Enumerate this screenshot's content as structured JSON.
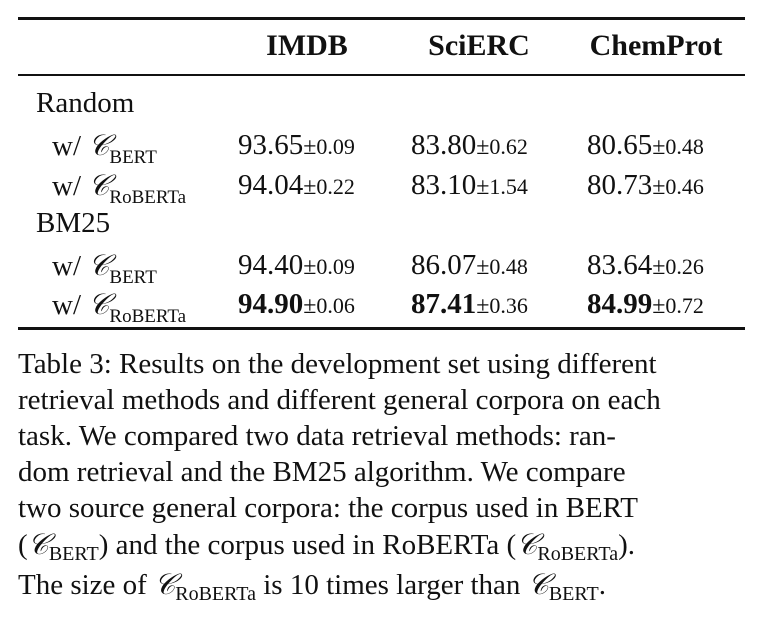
{
  "table": {
    "columns": [
      "IMDB",
      "SciERC",
      "ChemProt"
    ],
    "groups": [
      {
        "name": "Random",
        "rows": [
          {
            "prefix": "w/ ",
            "corpus_symbol": "𝒞",
            "corpus_sub": "BERT",
            "cells": [
              {
                "mean": "93.65",
                "pm": "±",
                "sd": "0.09",
                "bold": false
              },
              {
                "mean": "83.80",
                "pm": "±",
                "sd": "0.62",
                "bold": false
              },
              {
                "mean": "80.65",
                "pm": "±",
                "sd": "0.48",
                "bold": false
              }
            ]
          },
          {
            "prefix": "w/ ",
            "corpus_symbol": "𝒞",
            "corpus_sub": "RoBERTa",
            "cells": [
              {
                "mean": "94.04",
                "pm": "±",
                "sd": "0.22",
                "bold": false
              },
              {
                "mean": "83.10",
                "pm": "±",
                "sd": "1.54",
                "bold": false
              },
              {
                "mean": "80.73",
                "pm": "±",
                "sd": "0.46",
                "bold": false
              }
            ]
          }
        ]
      },
      {
        "name": "BM25",
        "rows": [
          {
            "prefix": "w/ ",
            "corpus_symbol": "𝒞",
            "corpus_sub": "BERT",
            "cells": [
              {
                "mean": "94.40",
                "pm": "±",
                "sd": "0.09",
                "bold": false
              },
              {
                "mean": "86.07",
                "pm": "±",
                "sd": "0.48",
                "bold": false
              },
              {
                "mean": "83.64",
                "pm": "±",
                "sd": "0.26",
                "bold": false
              }
            ]
          },
          {
            "prefix": "w/ ",
            "corpus_symbol": "𝒞",
            "corpus_sub": "RoBERTa",
            "cells": [
              {
                "mean": "94.90",
                "pm": "±",
                "sd": "0.06",
                "bold": true
              },
              {
                "mean": "87.41",
                "pm": "±",
                "sd": "0.36",
                "bold": true
              },
              {
                "mean": "84.99",
                "pm": "±",
                "sd": "0.72",
                "bold": true
              }
            ]
          }
        ]
      }
    ]
  },
  "caption": {
    "line1": "Table 3: Results on the development set using different",
    "line2": "retrieval methods and different general corpora on each",
    "line3": "task.  We compared two data retrieval methods: ran-",
    "line4": "dom retrieval and the BM25 algorithm.  We compare",
    "line5": "two source general corpora: the corpus used in BERT",
    "line6a": "(",
    "line6_sym1": "𝒞",
    "line6_sub1": "BERT",
    "line6b": ") and the corpus used in RoBERTa (",
    "line6_sym2": "𝒞",
    "line6_sub2": "RoBERTa",
    "line6c": ").",
    "line7a": "The size of ",
    "line7_sym1": "𝒞",
    "line7_sub1": "RoBERTa",
    "line7b": " is 10 times larger than ",
    "line7_sym2": "𝒞",
    "line7_sub2": "BERT",
    "line7c": "."
  }
}
